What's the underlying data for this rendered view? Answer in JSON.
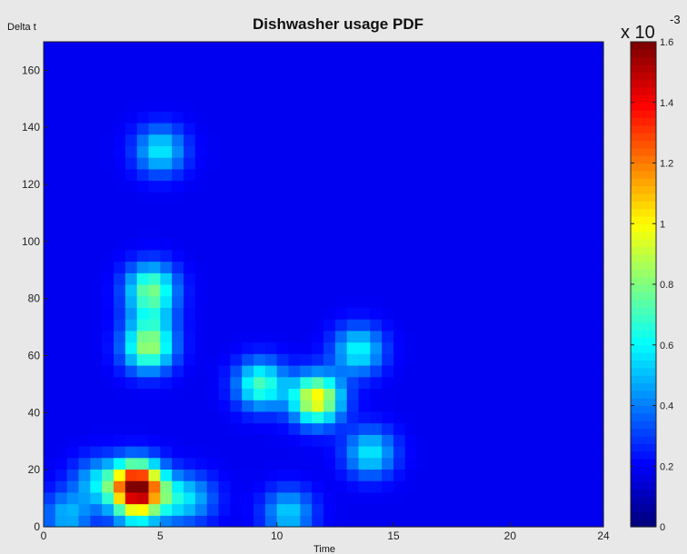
{
  "chart_data": {
    "type": "heatmap",
    "title": "Dishwasher usage PDF",
    "xlabel": "Time",
    "ylabel": "Delta t",
    "xlim": [
      0,
      24
    ],
    "ylim": [
      0,
      170
    ],
    "x_ticks": [
      "0",
      "5",
      "10",
      "15",
      "20",
      "24"
    ],
    "x_tick_values": [
      0,
      5,
      10,
      15,
      20,
      24
    ],
    "y_ticks": [
      "0",
      "20",
      "40",
      "60",
      "80",
      "100",
      "120",
      "140",
      "160"
    ],
    "y_tick_values": [
      0,
      20,
      40,
      60,
      80,
      100,
      120,
      140,
      160
    ],
    "grid": false,
    "colormap": "jet",
    "colorbar": {
      "min": 0,
      "max": 0.0016,
      "multiplier_label": "x 10",
      "multiplier_exponent": "-3",
      "tick_labels": [
        "0",
        "0.2",
        "0.4",
        "0.6",
        "0.8",
        "1",
        "1.2",
        "1.4",
        "1.6"
      ],
      "tick_values": [
        0,
        0.2,
        0.4,
        0.6,
        0.8,
        1.0,
        1.2,
        1.4,
        1.6
      ]
    },
    "grid_cells": {
      "nx": 48,
      "ny": 42
    },
    "peaks": [
      {
        "time": 4.0,
        "delta_t": 14,
        "density": 1.62
      },
      {
        "time": 2.3,
        "delta_t": 16,
        "density": 0.35
      },
      {
        "time": 5.5,
        "delta_t": 10,
        "density": 0.3
      },
      {
        "time": 1.0,
        "delta_t": 4,
        "density": 0.35
      },
      {
        "time": 4.0,
        "delta_t": 4,
        "density": 0.25
      },
      {
        "time": 6.5,
        "delta_t": 10,
        "density": 0.25
      },
      {
        "time": 4.5,
        "delta_t": 63,
        "density": 0.72
      },
      {
        "time": 4.6,
        "delta_t": 84,
        "density": 0.62
      },
      {
        "time": 4.6,
        "delta_t": 74,
        "density": 0.25
      },
      {
        "time": 5.0,
        "delta_t": 132,
        "density": 0.45
      },
      {
        "time": 11.7,
        "delta_t": 45,
        "density": 0.95
      },
      {
        "time": 9.3,
        "delta_t": 50,
        "density": 0.6
      },
      {
        "time": 13.5,
        "delta_t": 62,
        "density": 0.48
      },
      {
        "time": 14.0,
        "delta_t": 26,
        "density": 0.45
      },
      {
        "time": 10.5,
        "delta_t": 5,
        "density": 0.4
      }
    ]
  }
}
